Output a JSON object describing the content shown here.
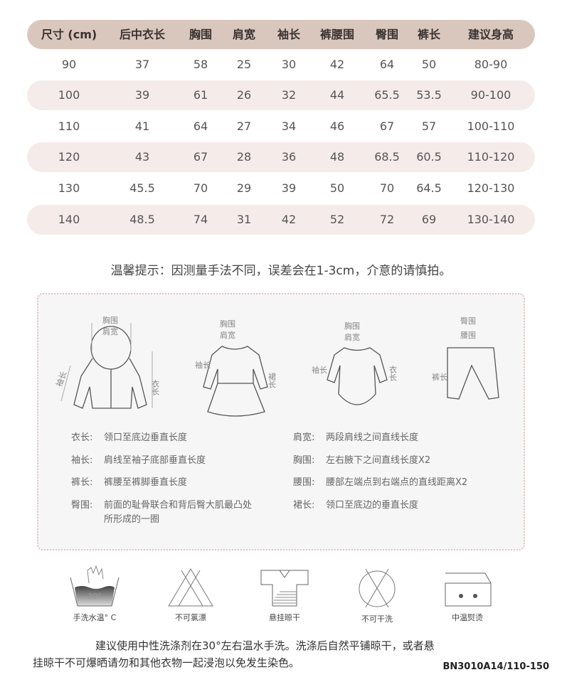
{
  "table": {
    "headers": [
      "尺寸 (cm)",
      "后中衣长",
      "胸围",
      "肩宽",
      "袖长",
      "裤腰围",
      "臀围",
      "裤长",
      "建议身高"
    ],
    "rows": [
      [
        "90",
        "37",
        "58",
        "25",
        "30",
        "42",
        "64",
        "50",
        "80-90"
      ],
      [
        "100",
        "39",
        "61",
        "26",
        "32",
        "44",
        "65.5",
        "53.5",
        "90-100"
      ],
      [
        "110",
        "41",
        "64",
        "27",
        "34",
        "46",
        "67",
        "57",
        "100-110"
      ],
      [
        "120",
        "43",
        "67",
        "28",
        "36",
        "48",
        "68.5",
        "60.5",
        "110-120"
      ],
      [
        "130",
        "45.5",
        "70",
        "29",
        "39",
        "50",
        "70",
        "64.5",
        "120-130"
      ],
      [
        "140",
        "48.5",
        "74",
        "31",
        "42",
        "52",
        "72",
        "69",
        "130-140"
      ]
    ],
    "header_color": "#d9c7be",
    "stripe_color": "#f5ecea"
  },
  "tip": "温馨提示：因测量手法不同，误差会在1-3cm，介意的请慎拍。",
  "diagrams": {
    "chest": "胸围",
    "shoulder": "肩宽",
    "sleeve": "袖长",
    "length": "衣长",
    "skirt": "裙长",
    "hip": "臀围",
    "waist": "腰围",
    "pants": "裤长"
  },
  "definitions": {
    "left": [
      {
        "label": "衣长:",
        "text": "领口至底边垂直长度"
      },
      {
        "label": "袖长:",
        "text": "肩线至袖子底部垂直长度"
      },
      {
        "label": "裤长:",
        "text": "裤腰至裤脚垂直长度"
      },
      {
        "label": "臀围:",
        "text": "前面的耻骨联合和背后臀大肌最凸处",
        "text2": "所形成的一圈"
      }
    ],
    "right": [
      {
        "label": "肩宽:",
        "text": "两段肩线之间直线长度"
      },
      {
        "label": "胸围:",
        "text": "左右腋下之间直线长度X2"
      },
      {
        "label": "腰围:",
        "text": "腰部左端点到右端点的直线距离X2"
      },
      {
        "label": "裙长:",
        "text": "领口至底边的垂直长度"
      }
    ]
  },
  "care": [
    {
      "icon": "hand-wash-icon",
      "label": "手洗水温° C",
      "temp": "30°"
    },
    {
      "icon": "no-bleach-icon",
      "label": "不可氯漂"
    },
    {
      "icon": "hang-dry-icon",
      "label": "悬挂晾干"
    },
    {
      "icon": "no-dry-clean-icon",
      "label": "不可干洗"
    },
    {
      "icon": "medium-iron-icon",
      "label": "中温熨烫"
    }
  ],
  "paragraph": [
    "建议使用中性洗涤剂在30°左右温水手洗。洗涤后自然平铺晾干，或者悬",
    "挂晾干不可爆晒请勿和其他衣物一起浸泡以免发生染色。"
  ],
  "code": "BN3010A14/110-150"
}
